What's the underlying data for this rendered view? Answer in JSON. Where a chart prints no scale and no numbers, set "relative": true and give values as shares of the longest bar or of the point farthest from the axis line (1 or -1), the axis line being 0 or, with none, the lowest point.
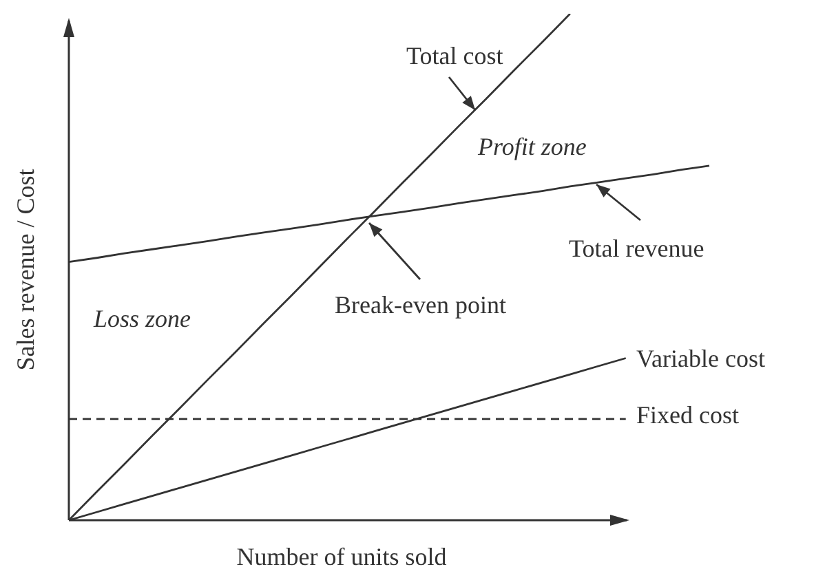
{
  "chart_data": {
    "type": "line",
    "relative": true,
    "xlabel": "Number of units sold",
    "ylabel": "Sales revenue / Cost",
    "categories": [
      null,
      null,
      null,
      null,
      null,
      null,
      null,
      null,
      null,
      null,
      null,
      null,
      null,
      null,
      null,
      null,
      null,
      null,
      null,
      null,
      null,
      null,
      null,
      null
    ],
    "series": [
      {
        "name": "Total cost",
        "color": "#333333",
        "values": [
          0,
          0.056,
          0.111,
          0.167,
          0.222,
          0.278,
          0.333,
          0.389,
          0.444,
          0.5,
          0.556,
          0.611,
          0.667,
          0.722,
          0.778,
          0.833,
          0.889,
          0.944,
          1,
          null,
          null,
          null,
          null,
          null
        ]
      },
      {
        "name": "Total revenue",
        "color": "#333333",
        "values": [
          0.51,
          0.518,
          0.527,
          0.535,
          0.543,
          0.551,
          0.56,
          0.568,
          0.576,
          0.584,
          0.593,
          0.601,
          0.609,
          0.617,
          0.626,
          0.634,
          0.642,
          0.65,
          0.659,
          0.667,
          0.675,
          0.683,
          0.692,
          0.7
        ]
      },
      {
        "name": "Variable cost",
        "color": "#333333",
        "values": [
          0,
          0.016,
          0.032,
          0.048,
          0.064,
          0.08,
          0.096,
          0.112,
          0.128,
          0.144,
          0.16,
          0.176,
          0.192,
          0.208,
          0.224,
          0.24,
          0.256,
          0.272,
          0.288,
          0.304,
          0.32,
          null,
          null,
          null
        ]
      },
      {
        "name": "Fixed cost",
        "color": "#333333",
        "line_style": "dashed",
        "values": [
          0.2,
          0.2,
          0.2,
          0.2,
          0.2,
          0.2,
          0.2,
          0.2,
          0.2,
          0.2,
          0.2,
          0.2,
          0.2,
          0.2,
          0.2,
          0.2,
          0.2,
          0.2,
          0.2,
          0.2,
          0.2,
          null,
          null,
          null
        ]
      }
    ],
    "annotations": [
      "Profit zone",
      "Loss zone",
      "Break-even point"
    ]
  }
}
